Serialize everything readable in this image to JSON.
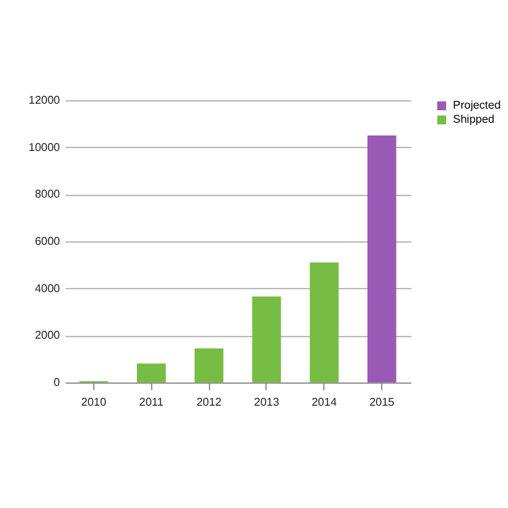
{
  "chart_data": {
    "type": "bar",
    "categories": [
      "2010",
      "2011",
      "2012",
      "2013",
      "2014",
      "2015"
    ],
    "series": [
      {
        "name": "Shipped",
        "color": "#77bc43",
        "values": [
          50,
          800,
          1450,
          3650,
          5100,
          null
        ]
      },
      {
        "name": "Projected",
        "color": "#9b59b6",
        "values": [
          null,
          null,
          null,
          null,
          null,
          10500
        ]
      }
    ],
    "ylim": [
      0,
      12000
    ],
    "yticks": [
      0,
      2000,
      4000,
      6000,
      8000,
      10000,
      12000
    ],
    "grid": "y",
    "legend": "right"
  }
}
